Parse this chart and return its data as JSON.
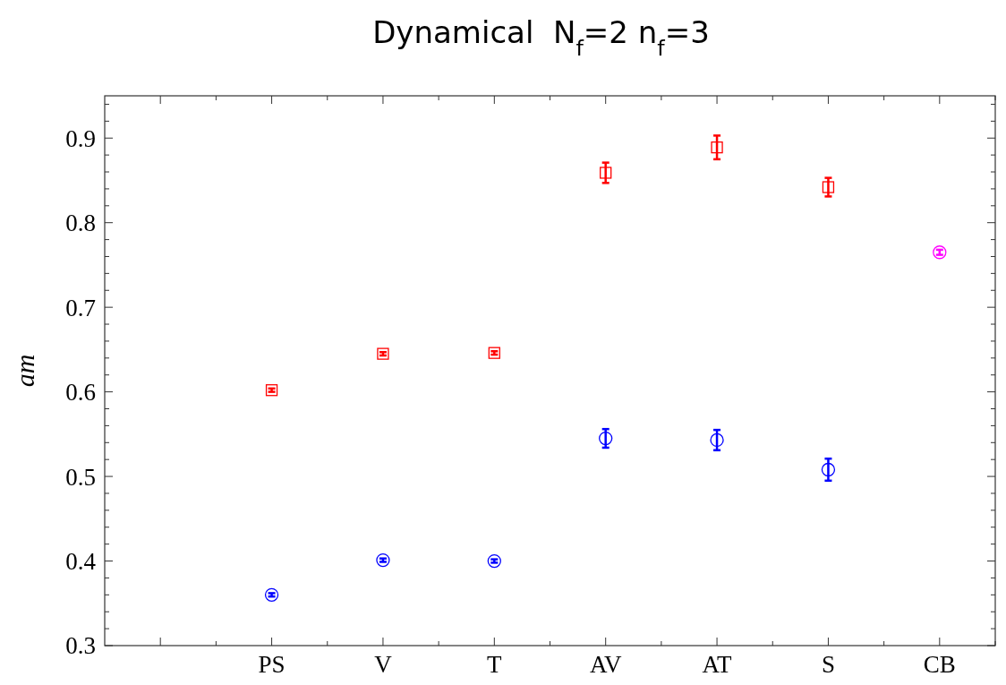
{
  "chart_data": {
    "type": "scatter",
    "title": "Dynamical  N$_{f}$=2 n$_{f}$=3",
    "ylabel": "am",
    "categories": [
      null,
      "PS",
      "V",
      "T",
      "AV",
      "AT",
      "S",
      "CB"
    ],
    "series": [
      {
        "color": "#ff0000",
        "marker": "square",
        "values": [
          null,
          0.602,
          0.645,
          0.646,
          0.859,
          0.889,
          0.842,
          null
        ],
        "errors": [
          null,
          0.002,
          0.002,
          0.002,
          0.012,
          0.014,
          0.011,
          null
        ]
      },
      {
        "color": "#0000ff",
        "marker": "circle",
        "values": [
          null,
          0.36,
          0.401,
          0.4,
          0.545,
          0.543,
          0.508,
          null
        ],
        "errors": [
          null,
          0.002,
          0.002,
          0.002,
          0.011,
          0.012,
          0.013,
          null
        ]
      },
      {
        "color": "#ff00ff",
        "marker": "circle",
        "values": [
          null,
          null,
          null,
          null,
          null,
          null,
          null,
          0.765
        ],
        "errors": [
          null,
          null,
          null,
          null,
          null,
          null,
          null,
          0.003
        ]
      }
    ],
    "ylim": [
      0.3,
      0.95
    ],
    "yticks": [
      0.3,
      {
        "value": 0.32,
        "label": null
      },
      {
        "value": 0.34,
        "label": null
      },
      {
        "value": 0.36,
        "label": null
      },
      {
        "value": 0.38,
        "label": null
      },
      0.4,
      {
        "value": 0.42,
        "label": null
      },
      {
        "value": 0.44,
        "label": null
      },
      {
        "value": 0.46,
        "label": null
      },
      {
        "value": 0.48,
        "label": null
      },
      0.5,
      {
        "value": 0.52,
        "label": null
      },
      {
        "value": 0.54,
        "label": null
      },
      {
        "value": 0.56,
        "label": null
      },
      {
        "value": 0.58,
        "label": null
      },
      0.6,
      {
        "value": 0.62,
        "label": null
      },
      {
        "value": 0.64,
        "label": null
      },
      {
        "value": 0.66,
        "label": null
      },
      {
        "value": 0.68,
        "label": null
      },
      0.7,
      {
        "value": 0.72,
        "label": null
      },
      {
        "value": 0.74,
        "label": null
      },
      {
        "value": 0.76,
        "label": null
      },
      {
        "value": 0.78,
        "label": null
      },
      0.8,
      {
        "value": 0.82,
        "label": null
      },
      {
        "value": 0.84,
        "label": null
      },
      {
        "value": 0.86,
        "label": null
      },
      {
        "value": 0.88,
        "label": null
      },
      0.9,
      {
        "value": 0.92,
        "label": null
      },
      {
        "value": 0.94,
        "label": null
      }
    ]
  }
}
